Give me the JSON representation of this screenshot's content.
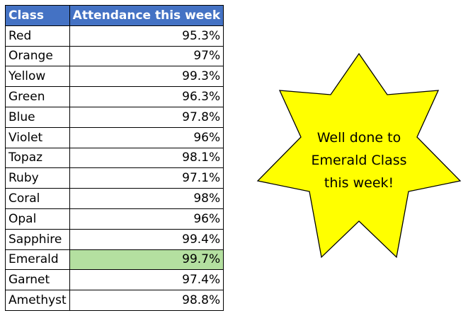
{
  "table": {
    "headers": [
      "Class",
      "Attendance this week"
    ],
    "rows": [
      {
        "class": "Red",
        "attendance": "95.3%"
      },
      {
        "class": "Orange",
        "attendance": "97%"
      },
      {
        "class": "Yellow",
        "attendance": "99.3%"
      },
      {
        "class": "Green",
        "attendance": "96.3%"
      },
      {
        "class": "Blue",
        "attendance": "97.8%"
      },
      {
        "class": "Violet",
        "attendance": "96%"
      },
      {
        "class": "Topaz",
        "attendance": "98.1%"
      },
      {
        "class": "Ruby",
        "attendance": "97.1%"
      },
      {
        "class": "Coral",
        "attendance": "98%"
      },
      {
        "class": "Opal",
        "attendance": "96%"
      },
      {
        "class": "Sapphire",
        "attendance": "99.4%"
      },
      {
        "class": "Emerald",
        "attendance": "99.7%",
        "highlighted": true
      },
      {
        "class": "Garnet",
        "attendance": "97.4%"
      },
      {
        "class": "Amethyst",
        "attendance": "98.8%"
      }
    ]
  },
  "callout": {
    "lines": [
      "Well done to",
      "Emerald Class",
      "this week!"
    ]
  },
  "colors": {
    "header_fill": "#4472C4",
    "header_text": "#FFFFFF",
    "highlight_fill": "#B4E0A0",
    "star_fill": "#FFFF00",
    "star_outline": "#000000"
  }
}
